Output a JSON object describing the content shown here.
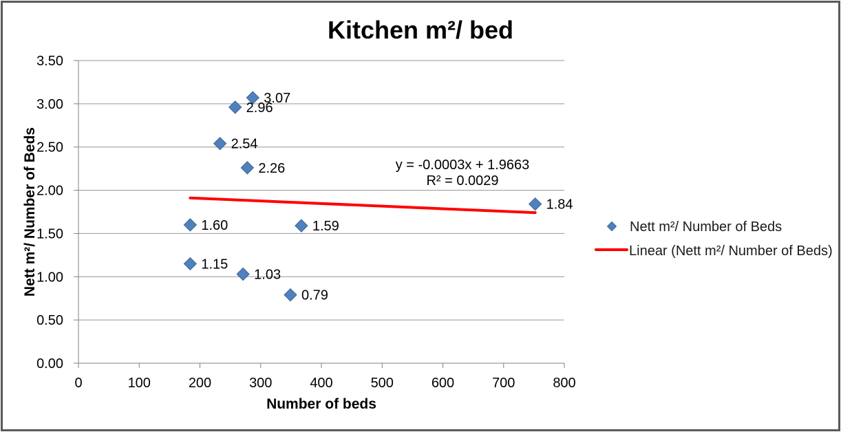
{
  "chart_data": {
    "type": "scatter",
    "title": "Kitchen m²/ bed",
    "xlabel": "Number of beds",
    "ylabel": "Nett m²/ Number of Beds",
    "xlim": [
      0,
      800
    ],
    "ylim": [
      0,
      3.5
    ],
    "x_tick_step": 100,
    "y_tick_step": 0.5,
    "grid": true,
    "legend_position": "right",
    "series": [
      {
        "name": "Nett m²/ Number of Beds",
        "marker": "diamond",
        "points": [
          {
            "x": 287,
            "y": 3.07,
            "label": "3.07"
          },
          {
            "x": 258,
            "y": 2.96,
            "label": "2.96"
          },
          {
            "x": 233,
            "y": 2.54,
            "label": "2.54"
          },
          {
            "x": 278,
            "y": 2.26,
            "label": "2.26"
          },
          {
            "x": 752,
            "y": 1.84,
            "label": "1.84"
          },
          {
            "x": 184,
            "y": 1.6,
            "label": "1.60"
          },
          {
            "x": 367,
            "y": 1.59,
            "label": "1.59"
          },
          {
            "x": 184,
            "y": 1.15,
            "label": "1.15"
          },
          {
            "x": 271,
            "y": 1.03,
            "label": "1.03"
          },
          {
            "x": 349,
            "y": 0.79,
            "label": "0.79"
          }
        ]
      }
    ],
    "trendline": {
      "name": "Linear (Nett m²/ Number of Beds)",
      "slope": -0.0003,
      "intercept": 1.9663,
      "r_squared": 0.0029,
      "x_range": [
        184,
        752
      ],
      "equation_text": "y = -0.0003x + 1.9663",
      "r2_text": "R² = 0.0029"
    },
    "legend": {
      "entries": [
        {
          "label": "Nett m²/ Number of Beds",
          "marker": "diamond-icon"
        },
        {
          "label": "Linear (Nett m²/ Number of Beds)",
          "marker": "line-icon"
        }
      ]
    },
    "colors": {
      "marker_fill": "#4f81bd",
      "marker_stroke": "#3c6595",
      "trendline": "#ff0000",
      "equation": "#ff0000",
      "grid": "#969696",
      "axis": "#808080",
      "text": "#000000",
      "frame_border": "#595959"
    }
  }
}
